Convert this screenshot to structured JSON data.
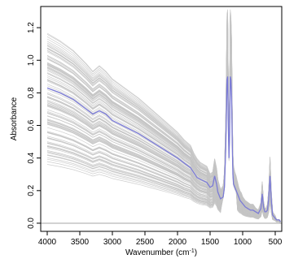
{
  "chart_data": {
    "type": "line",
    "title": "",
    "xlabel": "Wavenumber (cm",
    "xlabel_superscript": "-1",
    "xlabel_suffix": ")",
    "ylabel": "Absorbance",
    "xlim": [
      4100,
      400
    ],
    "x_reversed": true,
    "ylim": [
      -0.05,
      1.33
    ],
    "x_ticks": [
      4000,
      3500,
      3000,
      2500,
      2000,
      1500,
      1000,
      500
    ],
    "x_tick_labels": [
      "4000",
      "3500",
      "3000",
      "2500",
      "2000",
      "1500",
      "1000",
      "500"
    ],
    "y_ticks": [
      0.0,
      0.2,
      0.4,
      0.6,
      0.8,
      1.0,
      1.2
    ],
    "y_tick_labels": [
      "0.0",
      "0.2",
      "0.4",
      "0.6",
      "0.8",
      "1.0",
      "1.2"
    ],
    "reference_line_y": 0.0,
    "grid": false,
    "colors": {
      "gray_series": "#c4c4c4",
      "highlight_series": "#7b7bd6",
      "reference_line": "#888888",
      "axis": "#000000"
    },
    "highlight_series": {
      "x": [
        4000,
        3800,
        3600,
        3400,
        3300,
        3200,
        3100,
        3000,
        2800,
        2600,
        2400,
        2200,
        2000,
        1900,
        1800,
        1750,
        1700,
        1650,
        1600,
        1550,
        1500,
        1460,
        1430,
        1400,
        1380,
        1340,
        1300,
        1280,
        1260,
        1250,
        1240,
        1230,
        1220,
        1210,
        1200,
        1190,
        1180,
        1170,
        1160,
        1150,
        1140,
        1120,
        1100,
        1080,
        1060,
        1040,
        1020,
        1000,
        960,
        920,
        880,
        840,
        800,
        760,
        720,
        700,
        680,
        660,
        640,
        620,
        600,
        580,
        560,
        540,
        520,
        500,
        480,
        460,
        440,
        420
      ],
      "y": [
        0.83,
        0.8,
        0.76,
        0.7,
        0.67,
        0.69,
        0.67,
        0.63,
        0.59,
        0.55,
        0.5,
        0.45,
        0.4,
        0.37,
        0.34,
        0.31,
        0.28,
        0.27,
        0.26,
        0.25,
        0.22,
        0.23,
        0.29,
        0.24,
        0.19,
        0.15,
        0.16,
        0.22,
        0.45,
        0.65,
        0.88,
        0.9,
        0.6,
        0.4,
        0.55,
        0.9,
        0.88,
        0.78,
        0.5,
        0.3,
        0.24,
        0.22,
        0.2,
        0.18,
        0.16,
        0.14,
        0.13,
        0.12,
        0.1,
        0.09,
        0.08,
        0.08,
        0.07,
        0.06,
        0.09,
        0.18,
        0.1,
        0.07,
        0.07,
        0.08,
        0.15,
        0.29,
        0.14,
        0.05,
        0.04,
        0.03,
        0.02,
        0.02,
        0.02,
        0.01
      ]
    },
    "gray_series_count": 120,
    "gray_series_offset_range": [
      0.38,
      1.15
    ],
    "gray_series_shape": {
      "x": [
        4000,
        3800,
        3600,
        3400,
        3300,
        3200,
        3100,
        3000,
        2800,
        2600,
        2400,
        2200,
        2000,
        1900,
        1800,
        1750,
        1700,
        1650,
        1600,
        1550,
        1500,
        1460,
        1430,
        1400,
        1380,
        1340,
        1300,
        1280,
        1260,
        1250,
        1240,
        1230,
        1220,
        1210,
        1200,
        1190,
        1180,
        1170,
        1160,
        1150,
        1140,
        1120,
        1100,
        1080,
        1060,
        1040,
        1020,
        1000,
        960,
        920,
        880,
        840,
        800,
        760,
        720,
        700,
        680,
        660,
        640,
        620,
        600,
        580,
        560,
        540,
        520,
        500,
        480,
        460,
        440,
        420
      ],
      "baseline": [
        1.0,
        0.96,
        0.91,
        0.84,
        0.8,
        0.83,
        0.8,
        0.76,
        0.71,
        0.66,
        0.6,
        0.54,
        0.48,
        0.44,
        0.41,
        0.37,
        0.34,
        0.32,
        0.31,
        0.3,
        0.26,
        0.27,
        0.34,
        0.29,
        0.23,
        0.18,
        0.19,
        0.26,
        0.54,
        0.78,
        1.06,
        1.08,
        0.72,
        0.48,
        0.66,
        1.08,
        1.05,
        0.94,
        0.6,
        0.36,
        0.29,
        0.26,
        0.24,
        0.22,
        0.19,
        0.17,
        0.16,
        0.14,
        0.12,
        0.11,
        0.1,
        0.1,
        0.08,
        0.07,
        0.11,
        0.22,
        0.12,
        0.08,
        0.08,
        0.1,
        0.18,
        0.35,
        0.17,
        0.06,
        0.05,
        0.04,
        0.02,
        0.02,
        0.02,
        0.01
      ]
    }
  }
}
